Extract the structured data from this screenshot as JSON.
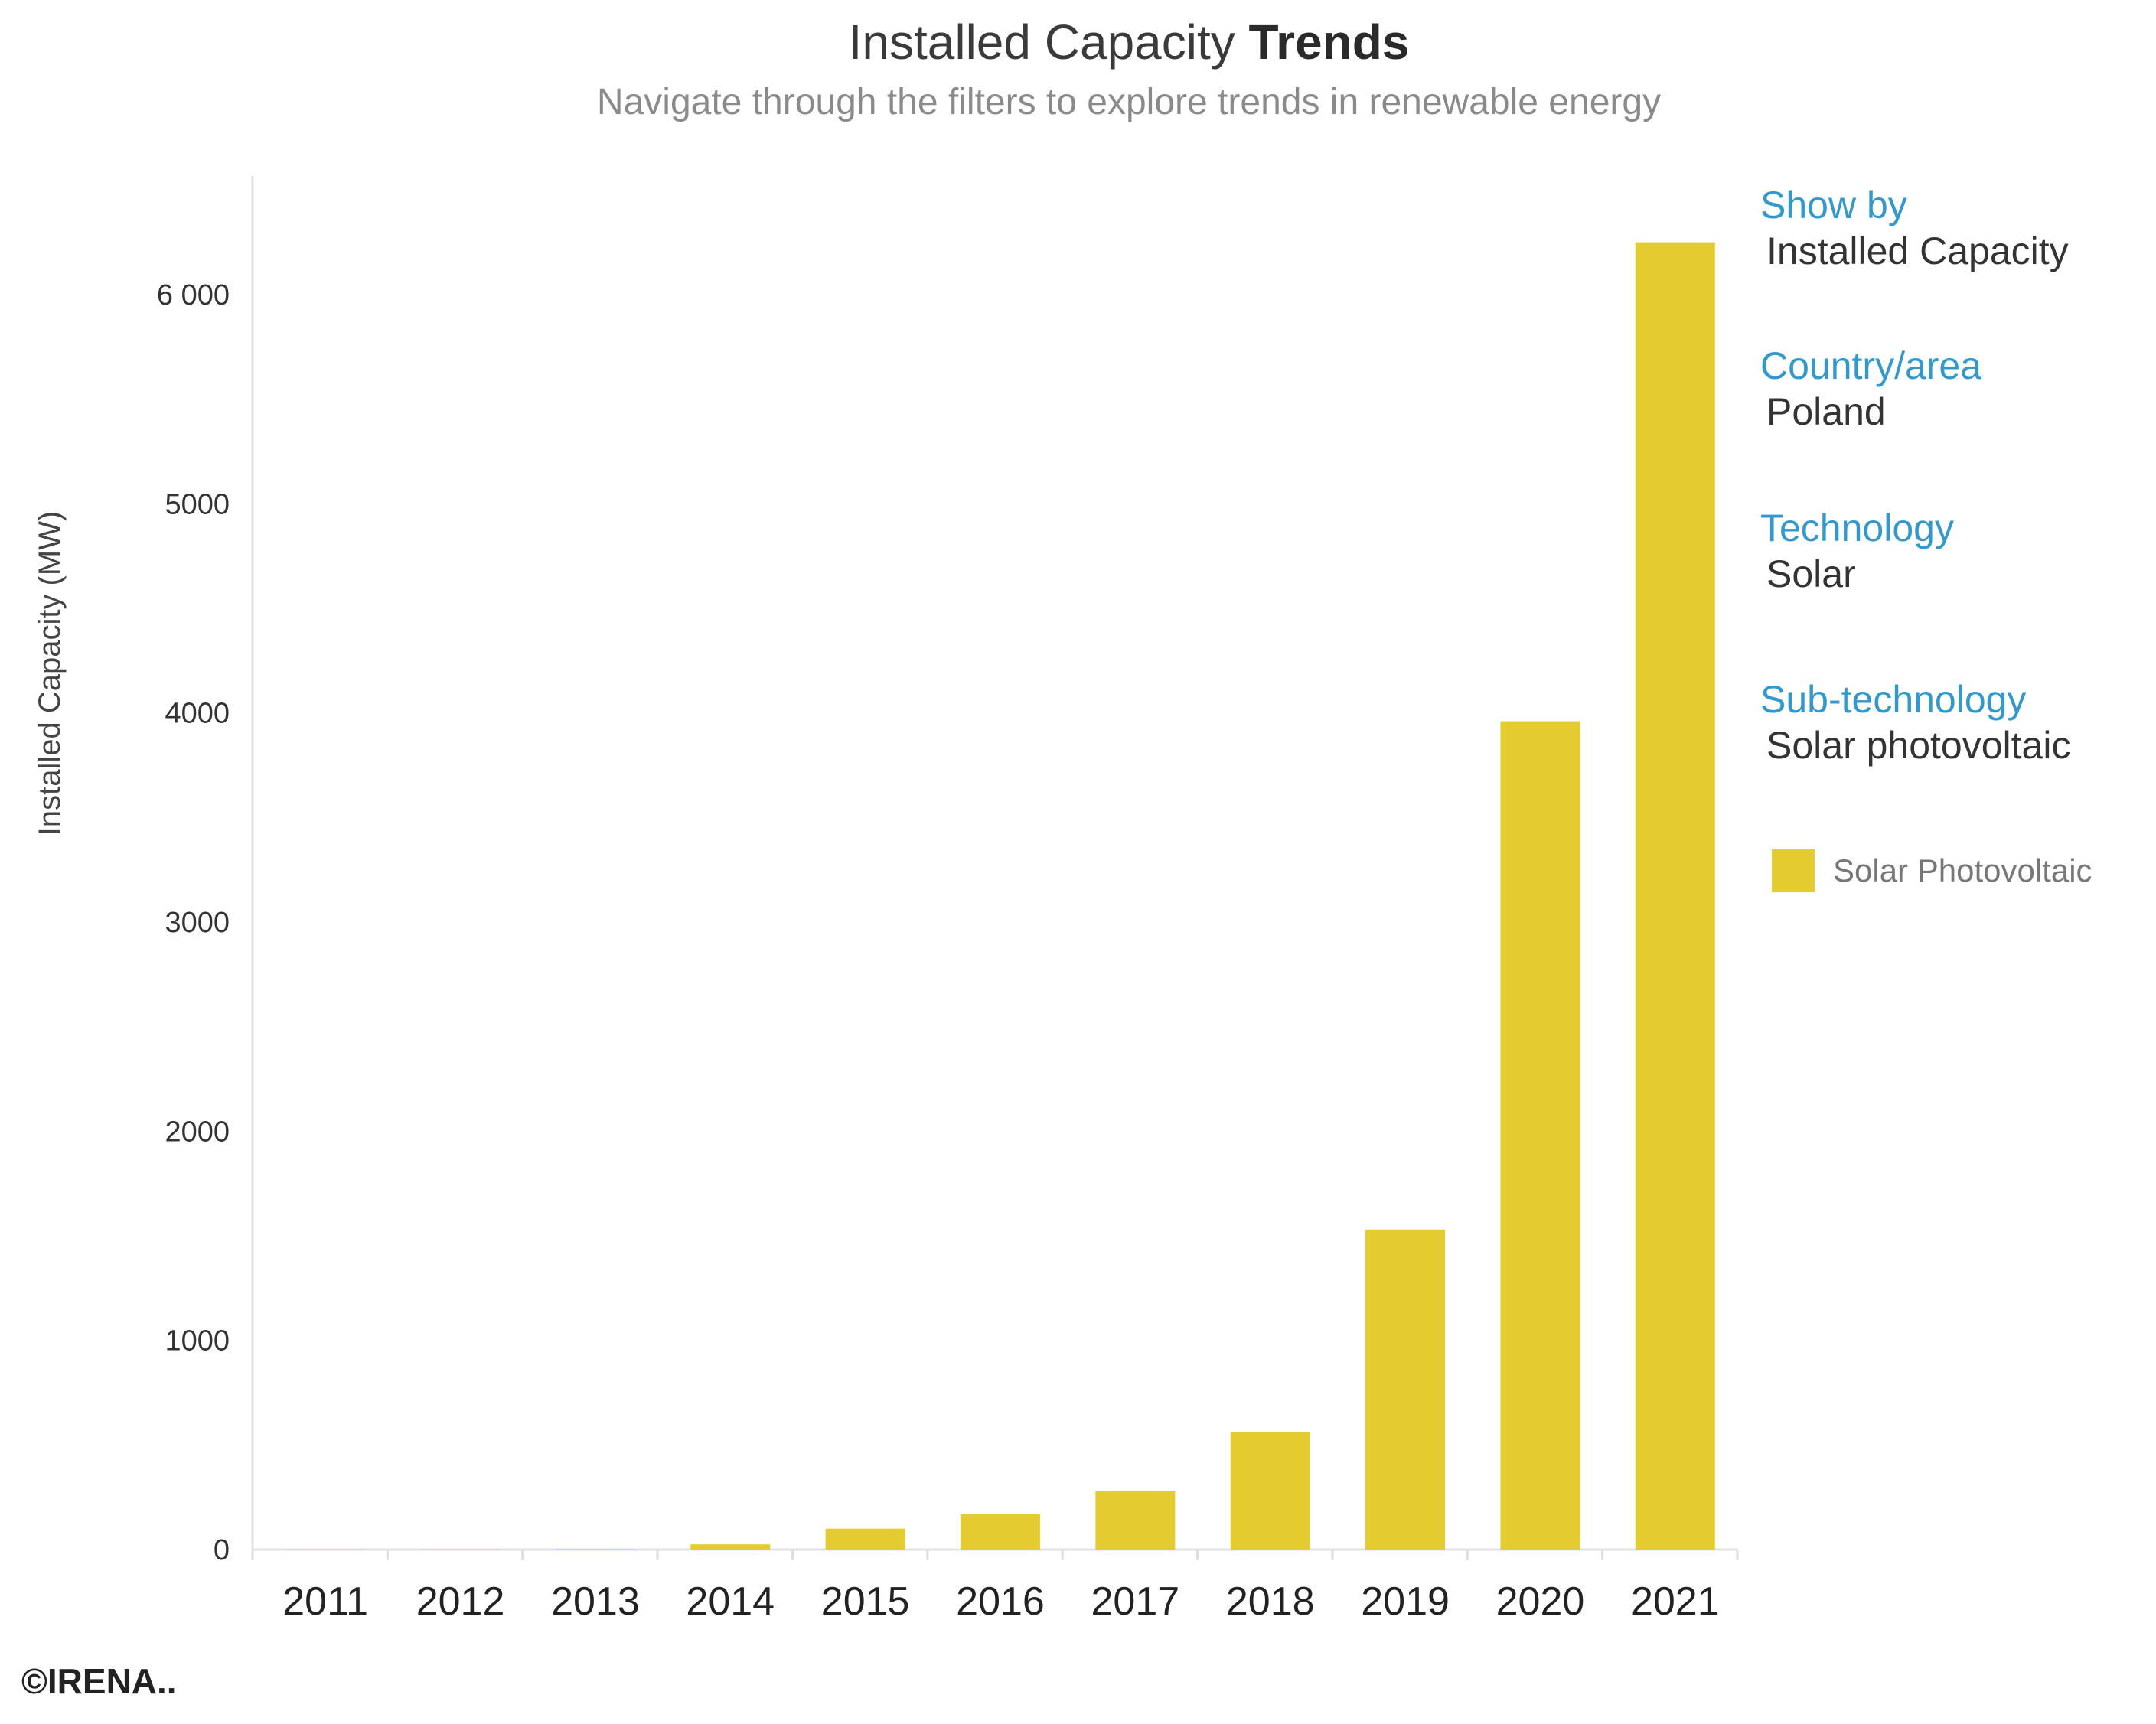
{
  "chart_data": {
    "type": "bar",
    "title_regular": "Installed Capacity ",
    "title_bold": "Trends",
    "subtitle": "Navigate through the filters to explore trends in renewable energy",
    "xlabel": "",
    "ylabel": "Installed Capacity (MW)",
    "ylim": [
      0,
      6600
    ],
    "yticks": [
      0,
      1000,
      2000,
      3000,
      4000,
      5000,
      6000
    ],
    "ytick_labels": [
      "0",
      "1000",
      "2000",
      "3000",
      "4000",
      "5000",
      "6 000"
    ],
    "grid": false,
    "categories": [
      "2011",
      "2012",
      "2013",
      "2014",
      "2015",
      "2016",
      "2017",
      "2018",
      "2019",
      "2020",
      "2021"
    ],
    "series": [
      {
        "name": "Solar Photovoltaic",
        "values": [
          1,
          1,
          2,
          25,
          100,
          170,
          280,
          560,
          1530,
          3960,
          6250
        ]
      }
    ],
    "legend_position": "right"
  },
  "filters": [
    {
      "label": "Show by",
      "value": "Installed Capacity"
    },
    {
      "label": "Country/area",
      "value": "Poland"
    },
    {
      "label": "Technology",
      "value": "Solar"
    },
    {
      "label": "Sub-technology",
      "value": "Solar photovoltaic"
    }
  ],
  "legend": {
    "label": "Solar Photovoltaic"
  },
  "footer": {
    "text": "©IRENA.."
  },
  "colors": {
    "bar": "#e4cb2f",
    "filter_label": "#3399cc"
  }
}
